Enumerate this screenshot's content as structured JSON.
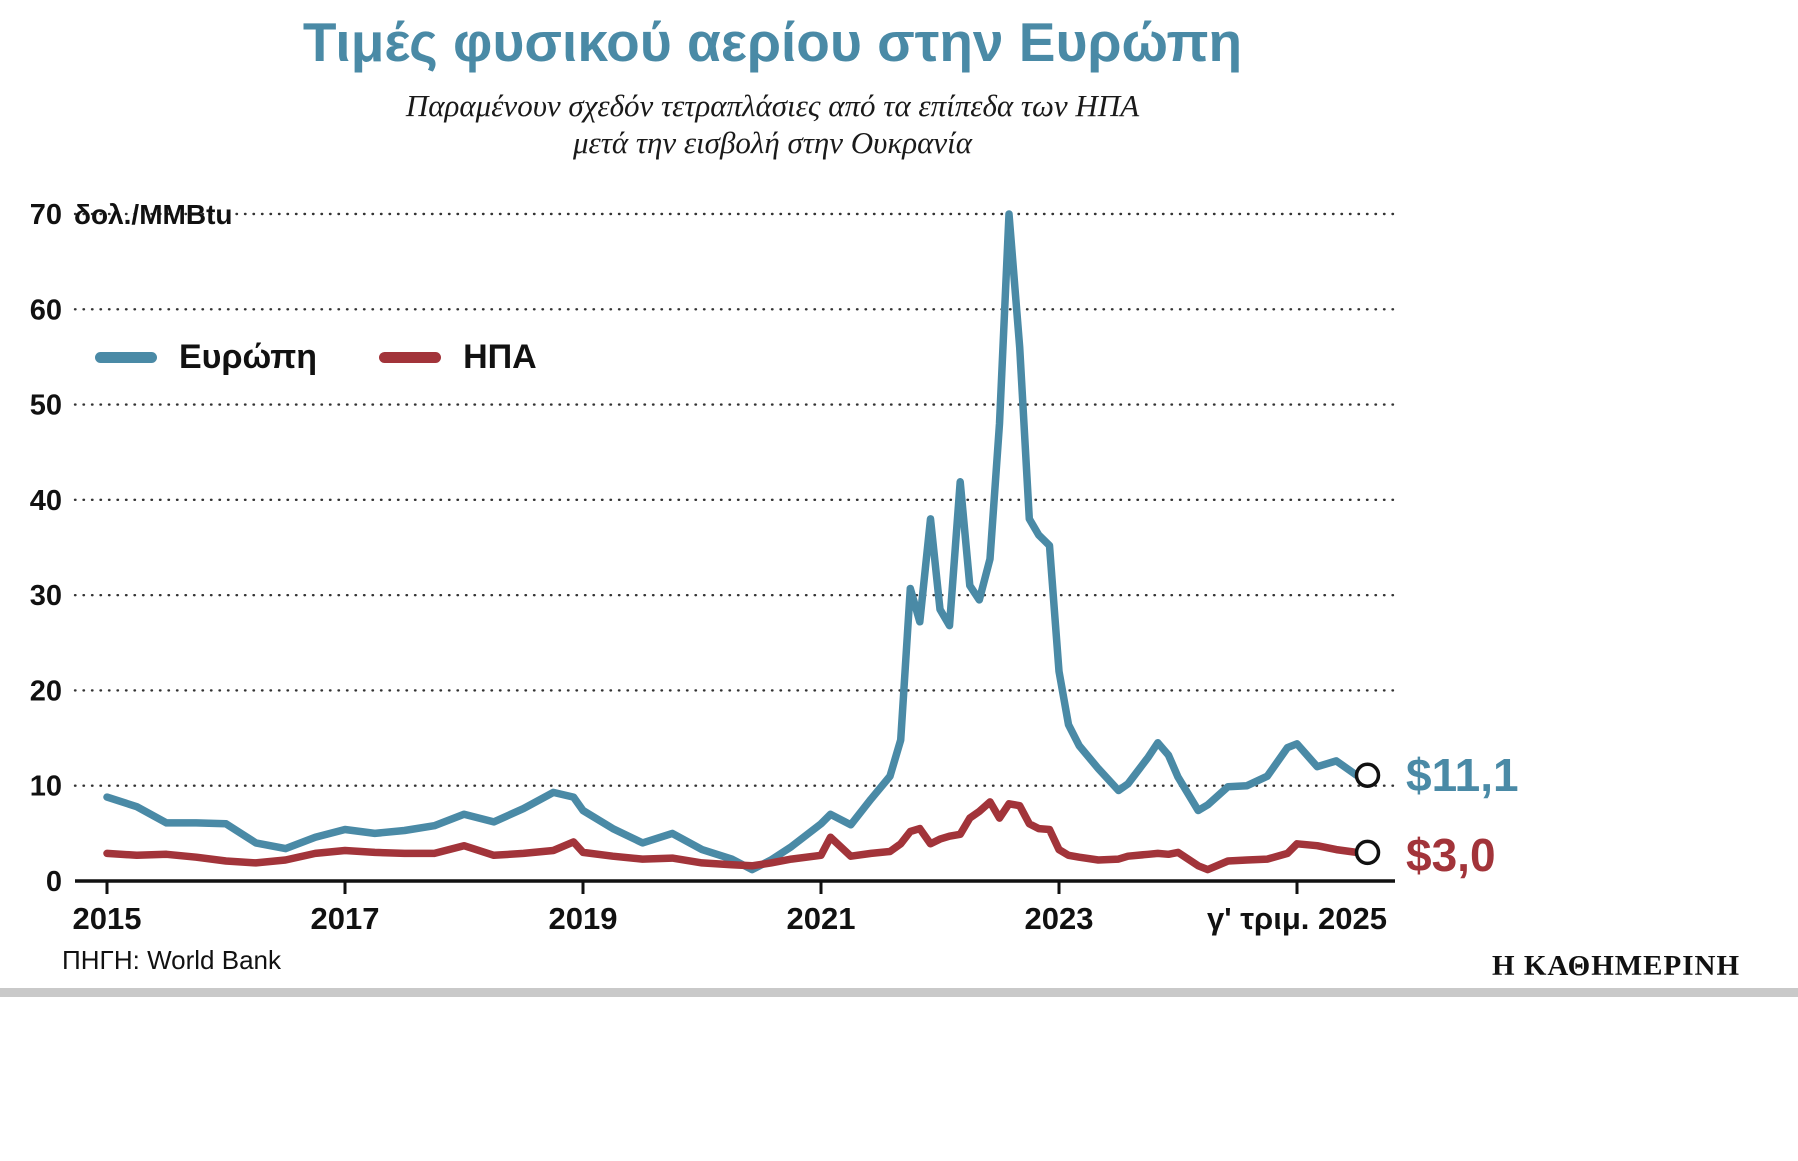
{
  "title": "Τιμές φυσικού αερίου στην Ευρώπη",
  "subtitle_line1": "Παραμένουν σχεδόν τετραπλάσιες από τα επίπεδα των ΗΠΑ",
  "subtitle_line2": "μετά την εισβολή στην Ουκρανία",
  "source": "ΠΗΓΗ: World Bank",
  "logo": "Η ΚΑΘΗΜΕΡΙΝΗ",
  "colors": {
    "europe": "#4a8aa6",
    "usa": "#a2343a",
    "title": "#4a8aa6",
    "axis": "#111111",
    "gridline": "#333333",
    "footer_bar": "#c9c9c9"
  },
  "legend": [
    {
      "label": "Ευρώπη",
      "color": "#4a8aa6"
    },
    {
      "label": "ΗΠΑ",
      "color": "#a2343a"
    }
  ],
  "end_labels": {
    "europe": "$11,1",
    "usa": "$3,0"
  },
  "chart_data": {
    "type": "line",
    "title": "Τιμές φυσικού αερίου στην Ευρώπη",
    "unit_label": "δολ./MMBtu",
    "ylim": [
      0,
      70
    ],
    "xlim": [
      2014.75,
      2025.85
    ],
    "grid": "dotted-horizontal",
    "legend_position": "upper-left-inside",
    "y_ticks": [
      0,
      10,
      20,
      30,
      40,
      50,
      60,
      70
    ],
    "x_ticks": [
      {
        "year": 2015,
        "label": "2015"
      },
      {
        "year": 2017,
        "label": "2017"
      },
      {
        "year": 2019,
        "label": "2019"
      },
      {
        "year": 2021,
        "label": "2021"
      },
      {
        "year": 2023,
        "label": "2023"
      },
      {
        "year": 2025,
        "label": "γ' τριμ. 2025"
      }
    ],
    "x": [
      2015.0,
      2015.25,
      2015.5,
      2015.75,
      2016.0,
      2016.25,
      2016.5,
      2016.75,
      2017.0,
      2017.25,
      2017.5,
      2017.75,
      2018.0,
      2018.25,
      2018.5,
      2018.75,
      2018.92,
      2019.0,
      2019.25,
      2019.5,
      2019.75,
      2020.0,
      2020.25,
      2020.42,
      2020.58,
      2020.75,
      2021.0,
      2021.08,
      2021.25,
      2021.42,
      2021.58,
      2021.67,
      2021.75,
      2021.83,
      2021.92,
      2022.0,
      2022.08,
      2022.17,
      2022.25,
      2022.33,
      2022.42,
      2022.5,
      2022.58,
      2022.67,
      2022.75,
      2022.83,
      2022.92,
      2023.0,
      2023.08,
      2023.17,
      2023.33,
      2023.5,
      2023.58,
      2023.75,
      2023.83,
      2023.92,
      2024.0,
      2024.17,
      2024.25,
      2024.42,
      2024.58,
      2024.75,
      2024.92,
      2025.0,
      2025.17,
      2025.33,
      2025.5
    ],
    "series": [
      {
        "id": "europe",
        "name": "Ευρώπη",
        "color": "#4a8aa6",
        "end_value_label": "$11,1",
        "values": [
          8.8,
          7.8,
          6.1,
          6.1,
          6.0,
          4.0,
          3.4,
          4.6,
          5.4,
          5.0,
          5.3,
          5.8,
          7.0,
          6.2,
          7.6,
          9.3,
          8.8,
          7.4,
          5.5,
          4.0,
          5.0,
          3.3,
          2.3,
          1.2,
          2.2,
          3.6,
          6.0,
          7.0,
          5.9,
          8.6,
          11.0,
          14.8,
          30.7,
          27.2,
          38.0,
          28.5,
          26.8,
          41.9,
          31.0,
          29.5,
          33.8,
          48.0,
          70.0,
          56.0,
          38.0,
          36.3,
          35.2,
          22.0,
          16.4,
          14.2,
          11.8,
          9.5,
          10.2,
          13.0,
          14.5,
          13.2,
          10.9,
          7.4,
          8.0,
          9.9,
          10.0,
          11.0,
          14.0,
          14.4,
          12.0,
          12.6,
          11.1
        ]
      },
      {
        "id": "usa",
        "name": "ΗΠΑ",
        "color": "#a2343a",
        "end_value_label": "$3,0",
        "values": [
          2.9,
          2.7,
          2.8,
          2.5,
          2.1,
          1.9,
          2.2,
          2.9,
          3.2,
          3.0,
          2.9,
          2.9,
          3.7,
          2.7,
          2.9,
          3.2,
          4.1,
          3.0,
          2.6,
          2.3,
          2.4,
          1.9,
          1.7,
          1.6,
          1.9,
          2.3,
          2.7,
          4.6,
          2.6,
          2.9,
          3.1,
          3.9,
          5.2,
          5.5,
          3.9,
          4.4,
          4.7,
          4.9,
          6.6,
          7.3,
          8.3,
          6.6,
          8.1,
          7.9,
          6.0,
          5.5,
          5.4,
          3.3,
          2.7,
          2.5,
          2.2,
          2.3,
          2.6,
          2.8,
          2.9,
          2.8,
          3.0,
          1.6,
          1.2,
          2.1,
          2.2,
          2.3,
          2.9,
          3.9,
          3.7,
          3.3,
          3.0
        ]
      }
    ]
  }
}
